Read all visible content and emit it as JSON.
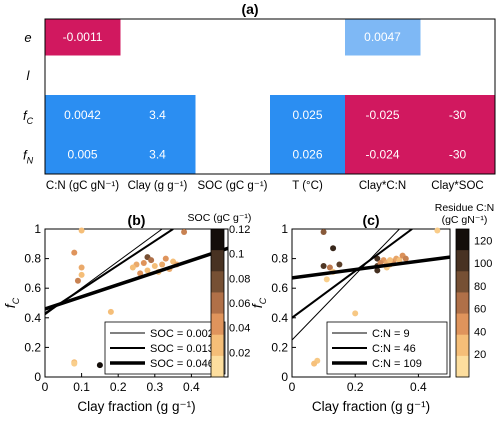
{
  "panel_a": {
    "label": "(a)",
    "rows": [
      "e",
      "l",
      "fC",
      "fN"
    ],
    "row_labels": [
      {
        "main": "e",
        "sub": ""
      },
      {
        "main": "l",
        "sub": ""
      },
      {
        "main": "f",
        "sub": "C"
      },
      {
        "main": "f",
        "sub": "N"
      }
    ],
    "columns": [
      "C:N (gC gN⁻¹)",
      "Clay (g g⁻¹)",
      "SOC (gC g⁻¹)",
      "T (°C)",
      "Clay*C:N",
      "Clay*SOC"
    ],
    "cells": [
      {
        "row": 0,
        "col": 0,
        "text": "-0.0011",
        "color": "#d1185f"
      },
      {
        "row": 0,
        "col": 4,
        "text": "0.0047",
        "color": "#7eb8f5"
      },
      {
        "row": 2,
        "col": 0,
        "text": "0.0042",
        "color": "#2b8ef2"
      },
      {
        "row": 2,
        "col": 1,
        "text": "3.4",
        "color": "#2b8ef2"
      },
      {
        "row": 2,
        "col": 3,
        "text": "0.025",
        "color": "#2b8ef2"
      },
      {
        "row": 2,
        "col": 4,
        "text": "-0.025",
        "color": "#d1185f"
      },
      {
        "row": 2,
        "col": 5,
        "text": "-30",
        "color": "#d1185f"
      },
      {
        "row": 3,
        "col": 0,
        "text": "0.005",
        "color": "#2b8ef2"
      },
      {
        "row": 3,
        "col": 1,
        "text": "3.4",
        "color": "#2b8ef2"
      },
      {
        "row": 3,
        "col": 3,
        "text": "0.026",
        "color": "#2b8ef2"
      },
      {
        "row": 3,
        "col": 4,
        "text": "-0.024",
        "color": "#d1185f"
      },
      {
        "row": 3,
        "col": 5,
        "text": "-30",
        "color": "#d1185f"
      }
    ]
  },
  "chart_data": [
    {
      "type": "scatter",
      "panel": "(b)",
      "xlabel": "Clay fraction (g g⁻¹)",
      "ylabel": "fC",
      "xlim": [
        0,
        0.5
      ],
      "ylim": [
        0,
        1
      ],
      "xticks": [
        "0",
        "0.1",
        "0.2",
        "0.3",
        "0.4"
      ],
      "yticks": [
        "0",
        "0.2",
        "0.4",
        "0.6",
        "0.8",
        "1"
      ],
      "points": [
        {
          "x": 0.1,
          "y": 0.99,
          "c": 0.02
        },
        {
          "x": 0.08,
          "y": 0.84,
          "c": 0.04
        },
        {
          "x": 0.1,
          "y": 0.74,
          "c": 0.03
        },
        {
          "x": 0.1,
          "y": 0.69,
          "c": 0.02
        },
        {
          "x": 0.09,
          "y": 0.65,
          "c": 0.05
        },
        {
          "x": 0.08,
          "y": 0.1,
          "c": 0.02
        },
        {
          "x": 0.08,
          "y": 0.09,
          "c": 0.01
        },
        {
          "x": 0.15,
          "y": 0.08,
          "c": 0.12
        },
        {
          "x": 0.18,
          "y": 0.44,
          "c": 0.02
        },
        {
          "x": 0.27,
          "y": 0.3,
          "c": 0.05
        },
        {
          "x": 0.38,
          "y": 0.98,
          "c": 0.05
        },
        {
          "x": 0.28,
          "y": 0.81,
          "c": 0.08
        },
        {
          "x": 0.29,
          "y": 0.79,
          "c": 0.06
        },
        {
          "x": 0.27,
          "y": 0.77,
          "c": 0.04
        },
        {
          "x": 0.25,
          "y": 0.76,
          "c": 0.03
        },
        {
          "x": 0.24,
          "y": 0.74,
          "c": 0.02
        },
        {
          "x": 0.3,
          "y": 0.75,
          "c": 0.02
        },
        {
          "x": 0.32,
          "y": 0.76,
          "c": 0.03
        },
        {
          "x": 0.33,
          "y": 0.8,
          "c": 0.04
        },
        {
          "x": 0.35,
          "y": 0.78,
          "c": 0.02
        },
        {
          "x": 0.36,
          "y": 0.76,
          "c": 0.03
        },
        {
          "x": 0.31,
          "y": 0.71,
          "c": 0.02
        },
        {
          "x": 0.34,
          "y": 0.73,
          "c": 0.03
        },
        {
          "x": 0.28,
          "y": 0.72,
          "c": 0.02
        },
        {
          "x": 0.26,
          "y": 0.7,
          "c": 0.04
        }
      ],
      "lines": [
        {
          "name": "SOC = 0.002",
          "x0": 0,
          "y0": 0.42,
          "x1": 0.32,
          "y1": 1.0,
          "width": 1
        },
        {
          "name": "SOC = 0.013",
          "x0": 0,
          "y0": 0.43,
          "x1": 0.35,
          "y1": 1.0,
          "width": 2
        },
        {
          "name": "SOC = 0.046",
          "x0": 0,
          "y0": 0.46,
          "x1": 0.5,
          "y1": 0.87,
          "width": 3.5
        }
      ],
      "colorbar": {
        "title": "SOC (gC g⁻¹)",
        "ticks": [
          "0.12",
          "0.1",
          "0.08",
          "0.06",
          "0.04",
          "0.02"
        ],
        "range": [
          0,
          0.12
        ]
      },
      "legend_position": "bottom-right"
    },
    {
      "type": "scatter",
      "panel": "(c)",
      "xlabel": "Clay fraction (g g⁻¹)",
      "ylabel": "fC",
      "xlim": [
        0,
        0.5
      ],
      "ylim": [
        0,
        1
      ],
      "xticks": [
        "0",
        "0.2",
        "0.4"
      ],
      "yticks": [
        "0",
        "0.2",
        "0.4",
        "0.6",
        "0.8",
        "1"
      ],
      "points": [
        {
          "x": 0.1,
          "y": 0.98,
          "c": 80
        },
        {
          "x": 0.13,
          "y": 0.87,
          "c": 115
        },
        {
          "x": 0.1,
          "y": 0.75,
          "c": 105
        },
        {
          "x": 0.12,
          "y": 0.74,
          "c": 60
        },
        {
          "x": 0.15,
          "y": 0.76,
          "c": 100
        },
        {
          "x": 0.13,
          "y": 0.71,
          "c": 15
        },
        {
          "x": 0.11,
          "y": 0.66,
          "c": 10
        },
        {
          "x": 0.27,
          "y": 0.8,
          "c": 108
        },
        {
          "x": 0.27,
          "y": 0.75,
          "c": 105
        },
        {
          "x": 0.27,
          "y": 0.72,
          "c": 110
        },
        {
          "x": 0.29,
          "y": 0.79,
          "c": 40
        },
        {
          "x": 0.3,
          "y": 0.77,
          "c": 30
        },
        {
          "x": 0.31,
          "y": 0.76,
          "c": 25
        },
        {
          "x": 0.32,
          "y": 0.78,
          "c": 45
        },
        {
          "x": 0.33,
          "y": 0.8,
          "c": 35
        },
        {
          "x": 0.34,
          "y": 0.79,
          "c": 20
        },
        {
          "x": 0.28,
          "y": 0.77,
          "c": 50
        },
        {
          "x": 0.3,
          "y": 0.74,
          "c": 15
        },
        {
          "x": 0.35,
          "y": 0.82,
          "c": 45
        },
        {
          "x": 0.36,
          "y": 0.8,
          "c": 55
        },
        {
          "x": 0.31,
          "y": 0.79,
          "c": 20
        },
        {
          "x": 0.46,
          "y": 0.99,
          "c": 12
        },
        {
          "x": 0.2,
          "y": 0.43,
          "c": 15
        },
        {
          "x": 0.28,
          "y": 0.3,
          "c": 15
        },
        {
          "x": 0.08,
          "y": 0.11,
          "c": 15
        },
        {
          "x": 0.07,
          "y": 0.09,
          "c": 20
        },
        {
          "x": 0.15,
          "y": 0.08,
          "c": 10
        }
      ],
      "lines": [
        {
          "name": "C:N = 9",
          "x0": 0,
          "y0": 0.25,
          "x1": 0.34,
          "y1": 1.0,
          "width": 1
        },
        {
          "name": "C:N = 46",
          "x0": 0,
          "y0": 0.4,
          "x1": 0.38,
          "y1": 1.0,
          "width": 2
        },
        {
          "name": "C:N = 109",
          "x0": 0,
          "y0": 0.67,
          "x1": 0.5,
          "y1": 0.81,
          "width": 3.5
        }
      ],
      "colorbar": {
        "title_line1": "Residue C:N",
        "title_line2": "(gC gN⁻¹)",
        "ticks": [
          "120",
          "100",
          "80",
          "60",
          "40",
          "20"
        ],
        "range": [
          0,
          130
        ]
      },
      "legend_position": "bottom-right"
    }
  ]
}
